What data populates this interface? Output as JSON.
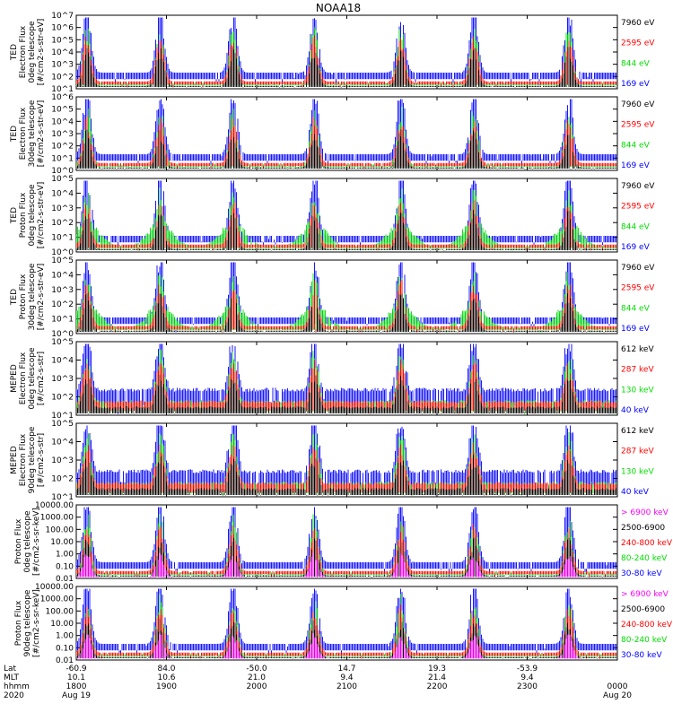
{
  "title": "NOAA18",
  "colors": {
    "black": "#000000",
    "blue": "#0000ff",
    "red": "#ff0000",
    "green": "#00dd00",
    "magenta": "#ff00ff",
    "axis": "#000000"
  },
  "chart_data": [
    {
      "type": "scatter",
      "ylabel_lines": [
        "TED",
        "Electron Flux",
        "0deg telescope",
        "[#/cm2-s-str-eV]"
      ],
      "scale": "log",
      "ylim": [
        10,
        10000000
      ],
      "ytick_labels": [
        "10^1",
        "10^2",
        "10^3",
        "10^4",
        "10^5",
        "10^6",
        "10^7"
      ],
      "legend": [
        {
          "label": "7960 eV",
          "color": "#000000"
        },
        {
          "label": "2595 eV",
          "color": "#ff0000"
        },
        {
          "label": "844 eV",
          "color": "#00dd00"
        },
        {
          "label": "169 eV",
          "color": "#0000ff"
        }
      ],
      "profile": "ted_e0"
    },
    {
      "type": "scatter",
      "ylabel_lines": [
        "TED",
        "Electron Flux",
        "30deg telescope",
        "[#/cm2-s-str-eV]"
      ],
      "scale": "log",
      "ylim": [
        1,
        1000000
      ],
      "ytick_labels": [
        "10^0",
        "10^1",
        "10^2",
        "10^3",
        "10^4",
        "10^5",
        "10^6"
      ],
      "legend": [
        {
          "label": "7960 eV",
          "color": "#000000"
        },
        {
          "label": "2595 eV",
          "color": "#ff0000"
        },
        {
          "label": "844 eV",
          "color": "#00dd00"
        },
        {
          "label": "169 eV",
          "color": "#0000ff"
        }
      ],
      "profile": "ted_e30"
    },
    {
      "type": "scatter",
      "ylabel_lines": [
        "TED",
        "Proton Flux",
        "0deg telescope",
        "[#/cm2-s-str-eV]"
      ],
      "scale": "log",
      "ylim": [
        1,
        100000
      ],
      "ytick_labels": [
        "10^0",
        "10^1",
        "10^2",
        "10^3",
        "10^4",
        "10^5"
      ],
      "legend": [
        {
          "label": "7960 eV",
          "color": "#000000"
        },
        {
          "label": "2595 eV",
          "color": "#ff0000"
        },
        {
          "label": "844 eV",
          "color": "#00dd00"
        },
        {
          "label": "169 eV",
          "color": "#0000ff"
        }
      ],
      "profile": "ted_p0"
    },
    {
      "type": "scatter",
      "ylabel_lines": [
        "TED",
        "Proton Flux",
        "30deg telescope",
        "[#/cm2-s-str-eV]"
      ],
      "scale": "log",
      "ylim": [
        1,
        100000
      ],
      "ytick_labels": [
        "10^0",
        "10^1",
        "10^2",
        "10^3",
        "10^4",
        "10^5"
      ],
      "legend": [
        {
          "label": "7960 eV",
          "color": "#000000"
        },
        {
          "label": "2595 eV",
          "color": "#ff0000"
        },
        {
          "label": "844 eV",
          "color": "#00dd00"
        },
        {
          "label": "169 eV",
          "color": "#0000ff"
        }
      ],
      "profile": "ted_p30"
    },
    {
      "type": "scatter",
      "ylabel_lines": [
        "MEPED",
        "Electron Flux",
        "0deg telescope",
        "[#/cm2-s-str]"
      ],
      "scale": "log",
      "ylim": [
        10,
        100000
      ],
      "ytick_labels": [
        "10^1",
        "10^2",
        "10^3",
        "10^4",
        "10^5"
      ],
      "legend": [
        {
          "label": "612 keV",
          "color": "#000000"
        },
        {
          "label": "287 keV",
          "color": "#ff0000"
        },
        {
          "label": "130 keV",
          "color": "#00dd00"
        },
        {
          "label": "40 keV",
          "color": "#0000ff"
        }
      ],
      "profile": "meped_e0"
    },
    {
      "type": "scatter",
      "ylabel_lines": [
        "MEPED",
        "Electron Flux",
        "90deg telescope",
        "[#/cm2-s-str]"
      ],
      "scale": "log",
      "ylim": [
        10,
        100000
      ],
      "ytick_labels": [
        "10^1",
        "10^2",
        "10^3",
        "10^4",
        "10^5"
      ],
      "legend": [
        {
          "label": "612 keV",
          "color": "#000000"
        },
        {
          "label": "287 keV",
          "color": "#ff0000"
        },
        {
          "label": "130 keV",
          "color": "#00dd00"
        },
        {
          "label": "40 keV",
          "color": "#0000ff"
        }
      ],
      "profile": "meped_e90"
    },
    {
      "type": "scatter",
      "ylabel_lines": [
        "Proton Flux",
        "0deg telescope",
        "[#/cm2-s-sr-keV]"
      ],
      "scale": "log",
      "ylim": [
        0.01,
        10000
      ],
      "ytick_labels": [
        "10000.00",
        "1000.00",
        "100.00",
        "10.00",
        "1.00",
        "0.10",
        "0.01"
      ],
      "legend": [
        {
          "label": "> 6900 keV",
          "color": "#ff00ff"
        },
        {
          "label": "2500-6900",
          "color": "#000000"
        },
        {
          "label": "240-800 keV",
          "color": "#ff0000"
        },
        {
          "label": "80-240 keV",
          "color": "#00dd00"
        },
        {
          "label": "30-80 keV",
          "color": "#0000ff"
        }
      ],
      "profile": "meped_p0"
    },
    {
      "type": "scatter",
      "ylabel_lines": [
        "Proton Flux",
        "90deg telescope",
        "[#/cm2-s-sr-keV]"
      ],
      "scale": "log",
      "ylim": [
        0.01,
        10000
      ],
      "ytick_labels": [
        "10000.00",
        "1000.00",
        "100.00",
        "10.00",
        "1.00",
        "0.10",
        "0.01"
      ],
      "legend": [
        {
          "label": "> 6900 keV",
          "color": "#ff00ff"
        },
        {
          "label": "2500-6900",
          "color": "#000000"
        },
        {
          "label": "240-800 keV",
          "color": "#ff0000"
        },
        {
          "label": "80-240 keV",
          "color": "#00dd00"
        },
        {
          "label": "30-80 keV",
          "color": "#0000ff"
        }
      ],
      "profile": "meped_p90"
    }
  ],
  "time_axis": {
    "row_labels": [
      "Lat",
      "MLT",
      "hhmm",
      "2020"
    ],
    "ticks": [
      {
        "lat": "-60.9",
        "mlt": "10.1",
        "hhmm": "1800",
        "date": "Aug 19"
      },
      {
        "lat": "84.0",
        "mlt": "10.6",
        "hhmm": "1900",
        "date": ""
      },
      {
        "lat": "-50.0",
        "mlt": "21.0",
        "hhmm": "2000",
        "date": ""
      },
      {
        "lat": "14.7",
        "mlt": "9.4",
        "hhmm": "2100",
        "date": ""
      },
      {
        "lat": "19.3",
        "mlt": "21.4",
        "hhmm": "2200",
        "date": ""
      },
      {
        "lat": "-53.9",
        "mlt": "9.4",
        "hhmm": "2300",
        "date": ""
      },
      {
        "lat": "",
        "mlt": "",
        "hhmm": "0000",
        "date": "Aug 20"
      }
    ]
  }
}
